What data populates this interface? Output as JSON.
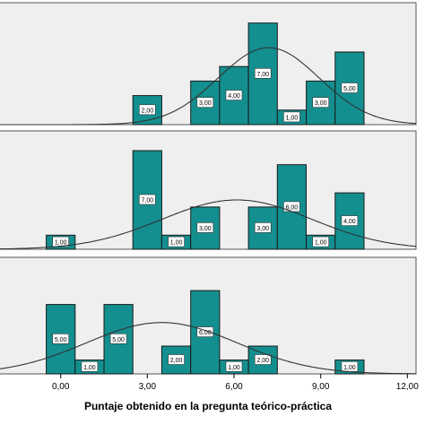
{
  "chart_data": {
    "type": "bar",
    "subtype": "stacked-panel histograms with normal curves",
    "xlabel": "Puntaje obtenido en la pregunta teórico-práctica",
    "x_ticks": [
      "0,00",
      "3,00",
      "6,00",
      "9,00",
      "12,00"
    ],
    "x_tick_values": [
      0,
      3,
      6,
      9,
      12
    ],
    "xlim": [
      -2.1,
      12.3
    ],
    "bin_width": 1,
    "panels": [
      {
        "ylim": [
          0,
          8.4
        ],
        "bins": [
          {
            "x": 3,
            "count": 2,
            "label": "2,00"
          },
          {
            "x": 5,
            "count": 3,
            "label": "3,00"
          },
          {
            "x": 6,
            "count": 4,
            "label": "4,00"
          },
          {
            "x": 7,
            "count": 7,
            "label": "7,00"
          },
          {
            "x": 8,
            "count": 1,
            "label": "1,00"
          },
          {
            "x": 9,
            "count": 3,
            "label": "3,00"
          },
          {
            "x": 10,
            "count": 5,
            "label": "5,00"
          }
        ],
        "normal_curve": {
          "mean": 7.2,
          "sd": 1.75,
          "peak": 5.3
        }
      },
      {
        "ylim": [
          0,
          8.4
        ],
        "bins": [
          {
            "x": 0,
            "count": 1,
            "label": "1,00"
          },
          {
            "x": 3,
            "count": 7,
            "label": "7,00"
          },
          {
            "x": 4,
            "count": 1,
            "label": "1,00"
          },
          {
            "x": 5,
            "count": 3,
            "label": "3,00"
          },
          {
            "x": 7,
            "count": 3,
            "label": "3,00"
          },
          {
            "x": 8,
            "count": 6,
            "label": "6,00"
          },
          {
            "x": 9,
            "count": 1,
            "label": "1,00"
          },
          {
            "x": 10,
            "count": 4,
            "label": "4,00"
          }
        ],
        "normal_curve": {
          "mean": 6.1,
          "sd": 2.6,
          "peak": 3.5
        }
      },
      {
        "ylim": [
          0,
          8.4
        ],
        "bins": [
          {
            "x": 0,
            "count": 5,
            "label": "5,00"
          },
          {
            "x": 1,
            "count": 1,
            "label": "1,00"
          },
          {
            "x": 2,
            "count": 5,
            "label": "5,00"
          },
          {
            "x": 4,
            "count": 2,
            "label": "2,00"
          },
          {
            "x": 5,
            "count": 6,
            "label": "6,00"
          },
          {
            "x": 6,
            "count": 1,
            "label": "1,00"
          },
          {
            "x": 7,
            "count": 2,
            "label": "2,00"
          },
          {
            "x": 10,
            "count": 1,
            "label": "1,00"
          }
        ],
        "normal_curve": {
          "mean": 3.5,
          "sd": 2.6,
          "peak": 3.7
        }
      }
    ],
    "colors": {
      "bar": "#138f8f",
      "panel_background": "#efefef",
      "curve": "#333333"
    }
  }
}
